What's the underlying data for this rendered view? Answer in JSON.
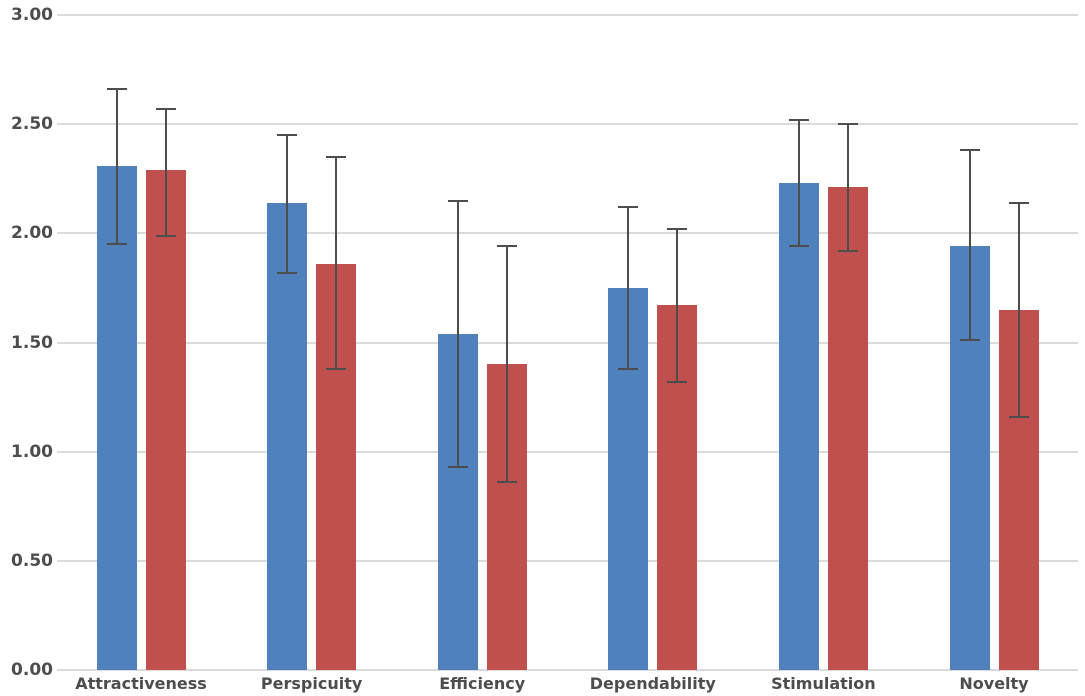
{
  "colors": {
    "series_blue": "#4F81BD",
    "series_red": "#C0504D",
    "grid_line": "#DBDBDB",
    "axis_text": "#4D4D4D",
    "error_bar": "#4D4D4D",
    "background": "#FFFFFF"
  },
  "chart_data": {
    "type": "bar",
    "title": "",
    "xlabel": "",
    "ylabel": "",
    "grid": true,
    "legend": "none",
    "ylim": [
      0.0,
      3.0
    ],
    "y_ticks": [
      {
        "label": "3.00",
        "value": 3.0
      },
      {
        "label": "2.50",
        "value": 2.5
      },
      {
        "label": "2.00",
        "value": 2.0
      },
      {
        "label": "1.50",
        "value": 1.5
      },
      {
        "label": "1.00",
        "value": 1.0
      },
      {
        "label": "0.50",
        "value": 0.5
      },
      {
        "label": "0.00",
        "value": 0.0
      }
    ],
    "categories": [
      "Attractiveness",
      "Perspicuity",
      "Efficiency",
      "Dependability",
      "Stimulation",
      "Novelty"
    ],
    "series": [
      {
        "name": "series-blue",
        "color": "#4F81BD",
        "values": [
          2.31,
          2.14,
          1.54,
          1.75,
          2.23,
          1.94
        ],
        "error_low": [
          1.95,
          1.82,
          0.93,
          1.38,
          1.94,
          1.51
        ],
        "error_high": [
          2.66,
          2.45,
          2.15,
          2.12,
          2.52,
          2.38
        ]
      },
      {
        "name": "series-red",
        "color": "#C0504D",
        "values": [
          2.29,
          1.86,
          1.4,
          1.67,
          2.21,
          1.65
        ],
        "error_low": [
          1.99,
          1.38,
          0.86,
          1.32,
          1.92,
          1.16
        ],
        "error_high": [
          2.57,
          2.35,
          1.94,
          2.02,
          2.5,
          2.14
        ]
      }
    ]
  }
}
